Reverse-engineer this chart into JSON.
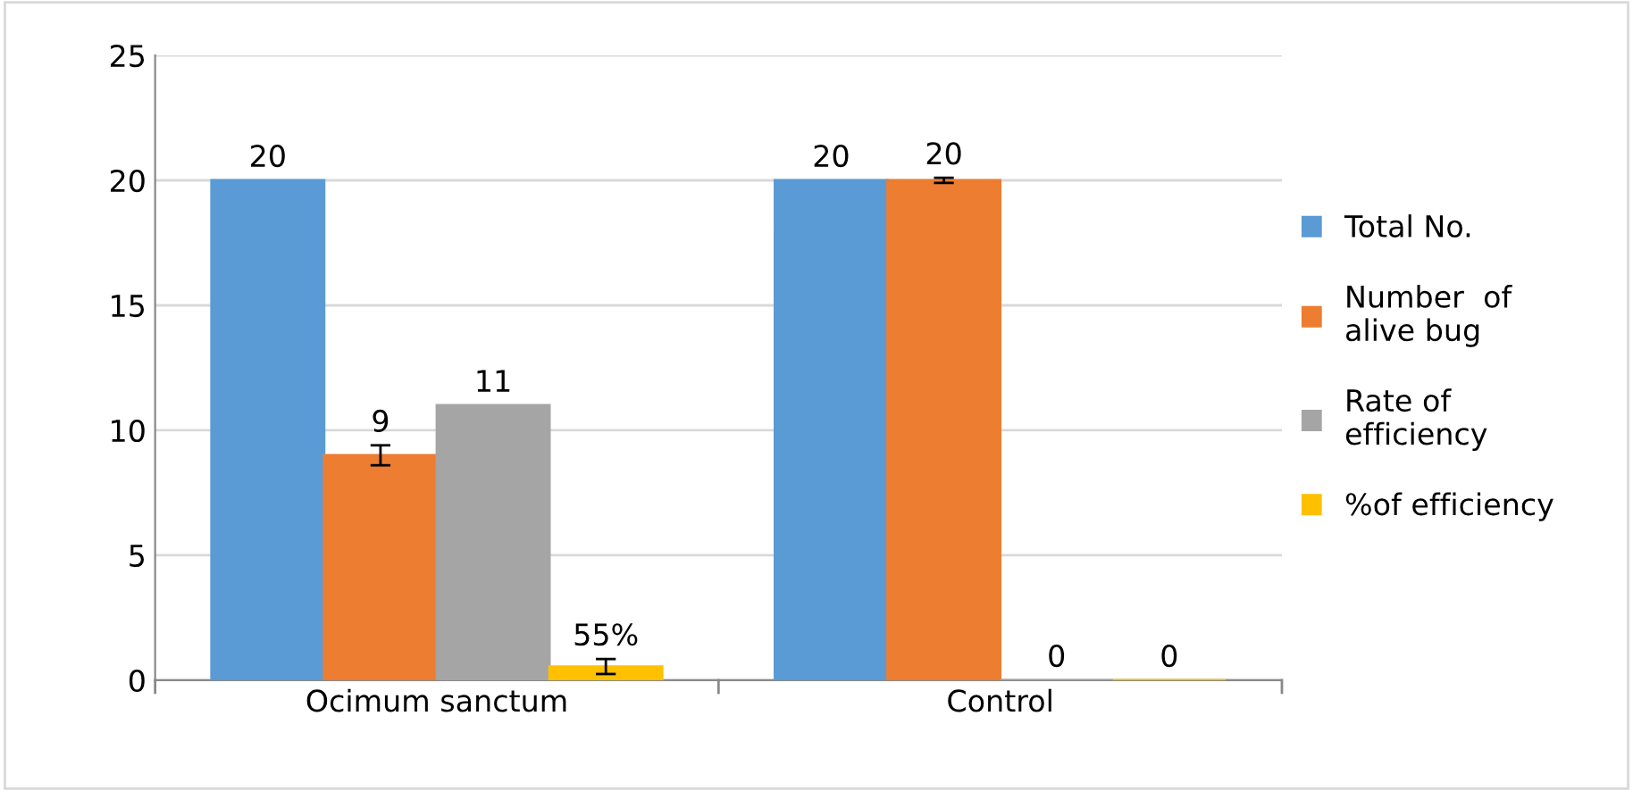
{
  "chart_data": {
    "type": "bar",
    "categories": [
      "Ocimum sanctum",
      "Control"
    ],
    "series": [
      {
        "name": "Total No.",
        "color": "#5b9bd5",
        "values": [
          20,
          20
        ],
        "value_labels": [
          "20",
          "20"
        ]
      },
      {
        "name": "Number  of\nalive bug",
        "color": "#ed7d31",
        "values": [
          9,
          20
        ],
        "value_labels": [
          "9",
          "20"
        ],
        "errors": [
          0.4,
          0.1
        ]
      },
      {
        "name": "Rate of\nefficiency",
        "color": "#a5a5a5",
        "values": [
          11,
          0
        ],
        "value_labels": [
          "11",
          "0"
        ]
      },
      {
        "name": "%of efficiency",
        "color": "#ffc000",
        "values": [
          0.55,
          0
        ],
        "value_labels": [
          "55%",
          "0"
        ],
        "errors": [
          0.3,
          null
        ]
      }
    ],
    "ylim": [
      0,
      25
    ],
    "yticks": [
      0,
      5,
      10,
      15,
      20,
      25
    ],
    "grid": "y",
    "legend": "right"
  }
}
